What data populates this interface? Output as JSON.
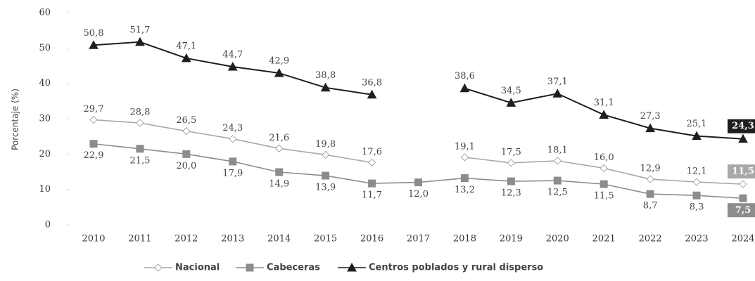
{
  "chart_data": {
    "type": "line",
    "y_label": "Porcentaje (%)",
    "categories": [
      "2010",
      "2011",
      "2012",
      "2013",
      "2014",
      "2015",
      "2016",
      "2017",
      "2018",
      "2019",
      "2020",
      "2021",
      "2022",
      "2023",
      "2024"
    ],
    "ylim": [
      0,
      60
    ],
    "yticks": [
      0,
      10,
      20,
      30,
      40,
      50,
      60
    ],
    "legend": "bottom",
    "series": [
      {
        "name": "Nacional",
        "color": "#a8a8a8",
        "marker": "diamond",
        "values": [
          29.7,
          28.8,
          26.5,
          24.3,
          21.6,
          19.8,
          17.6,
          null,
          19.1,
          17.5,
          18.1,
          16.0,
          12.9,
          12.1,
          11.5
        ],
        "value_labels": [
          "29,7",
          "28,8",
          "26,5",
          "24,3",
          "21,6",
          "19,8",
          "17,6",
          null,
          "19,1",
          "17,5",
          "18,1",
          "16,0",
          "12,9",
          "12,1",
          "11,5"
        ]
      },
      {
        "name": "Cabeceras",
        "color": "#8c8c8c",
        "marker": "square",
        "values": [
          22.9,
          21.5,
          20.0,
          17.9,
          14.9,
          13.9,
          11.7,
          12.0,
          13.2,
          12.3,
          12.5,
          11.5,
          8.7,
          8.3,
          7.5
        ],
        "value_labels": [
          "22,9",
          "21,5",
          "20,0",
          "17,9",
          "14,9",
          "13,9",
          "11,7",
          "12,0",
          "13,2",
          "12,3",
          "12,5",
          "11,5",
          "8,7",
          "8,3",
          "7,5"
        ]
      },
      {
        "name": "Centros poblados y rural disperso",
        "color": "#1e1e1e",
        "marker": "triangle",
        "values": [
          50.8,
          51.7,
          47.1,
          44.7,
          42.9,
          38.8,
          36.8,
          null,
          38.6,
          34.5,
          37.1,
          31.1,
          27.3,
          25.1,
          24.3
        ],
        "value_labels": [
          "50,8",
          "51,7",
          "47,1",
          "44,7",
          "42,9",
          "38,8",
          "36,8",
          null,
          "38,6",
          "34,5",
          "37,1",
          "31,1",
          "27,3",
          "25,1",
          "24,3"
        ]
      }
    ]
  }
}
